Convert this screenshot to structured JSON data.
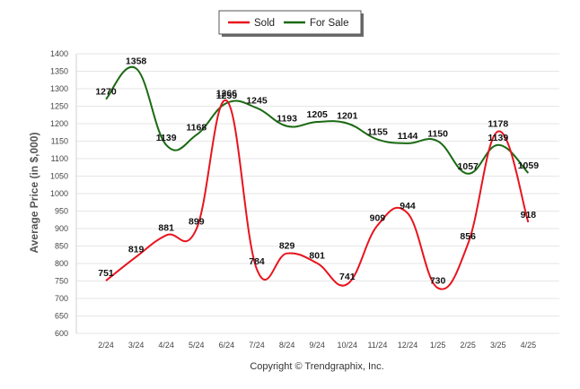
{
  "chart_data": {
    "type": "line",
    "categories": [
      "2/24",
      "3/24",
      "4/24",
      "5/24",
      "6/24",
      "7/24",
      "8/24",
      "9/24",
      "10/24",
      "11/24",
      "12/24",
      "1/25",
      "2/25",
      "3/25",
      "4/25"
    ],
    "series": [
      {
        "name": "Sold",
        "color": "#e8141e",
        "values": [
          751,
          819,
          881,
          899,
          1266,
          784,
          829,
          801,
          741,
          909,
          944,
          730,
          856,
          1178,
          918
        ]
      },
      {
        "name": "For Sale",
        "color": "#1a6a12",
        "values": [
          1270,
          1358,
          1139,
          1168,
          1259,
          1245,
          1193,
          1205,
          1201,
          1155,
          1144,
          1150,
          1057,
          1139,
          1059
        ]
      }
    ],
    "ylabel": "Average Price (in $,000)",
    "ylim": [
      600,
      1400
    ],
    "yticks": [
      600,
      650,
      700,
      750,
      800,
      850,
      900,
      950,
      1000,
      1050,
      1100,
      1150,
      1200,
      1250,
      1300,
      1350,
      1400
    ],
    "grid": true,
    "legend_position": "top-center",
    "copyright": "Copyright © Trendgraphix, Inc."
  }
}
